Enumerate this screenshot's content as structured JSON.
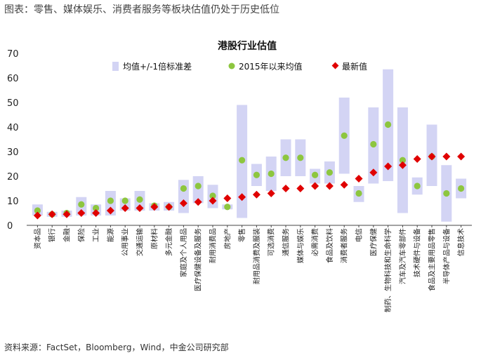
{
  "caption": "图表：零售、媒体娱乐、消费者服务等板块估值仍处于历史低位",
  "source": "资料来源：FactSet，Bloomberg，Wind，中金公司研究部",
  "chart_data": {
    "type": "range+scatter",
    "title": "港股行业估值",
    "ylim": [
      0,
      70
    ],
    "yticks": [
      0,
      10,
      20,
      30,
      40,
      50,
      60,
      70
    ],
    "legend": {
      "band": "均值+/-1倍标准差",
      "avg": "2015年以来均值",
      "latest": "最新值"
    },
    "colors": {
      "band": "#d3d4f4",
      "avg": "#8dc63f",
      "latest": "#e00000"
    },
    "categories": [
      "资本品",
      "银行",
      "金融",
      "保险",
      "工业",
      "能源",
      "公用事业",
      "交通运输",
      "原材料",
      "多元金融",
      "家庭及个人用品",
      "医疗保健设备及服务",
      "耐用消费品",
      "房地产",
      "零售",
      "耐用品消费及服装",
      "可选消费",
      "通信服务",
      "媒体与娱乐",
      "必需消费",
      "食品及饮料",
      "消费者服务",
      "电信",
      "医疗保健",
      "制药、生物科技和生命科学",
      "汽车及汽车零部件",
      "技术硬件与设备",
      "食品及主要用品零售",
      "半导体产品与设备",
      "信息技术"
    ],
    "band_low": [
      4,
      3.5,
      3.5,
      4,
      4,
      4,
      6,
      6,
      6,
      6,
      5,
      9,
      7,
      6.5,
      3,
      16,
      14,
      20,
      20,
      17,
      17,
      21,
      9.5,
      17,
      18,
      5,
      12.5,
      16,
      1.5,
      11
    ],
    "band_high": [
      8.5,
      5.5,
      6,
      11.5,
      8.5,
      14,
      11,
      14,
      9,
      9.5,
      18.5,
      20,
      16.5,
      8.5,
      49,
      25,
      28,
      35,
      35,
      23,
      26,
      52,
      16,
      48,
      63.5,
      48,
      19.5,
      41,
      24.5,
      19
    ],
    "avg": [
      6,
      4.5,
      5,
      8.5,
      7,
      10,
      10,
      10.5,
      8,
      7.5,
      15,
      16,
      12,
      7.5,
      26.5,
      20.5,
      21,
      27.5,
      27.5,
      20.5,
      21.5,
      36.5,
      13,
      33,
      41,
      26.5,
      16,
      28,
      13,
      15
    ],
    "latest": [
      4,
      4.5,
      4.5,
      5,
      5,
      6,
      7,
      7,
      7.5,
      7.5,
      9,
      9.5,
      10,
      11,
      11.5,
      12.5,
      13,
      15,
      15,
      16,
      16,
      16.5,
      19,
      21.5,
      24,
      24.5,
      27,
      28,
      28,
      28
    ]
  }
}
